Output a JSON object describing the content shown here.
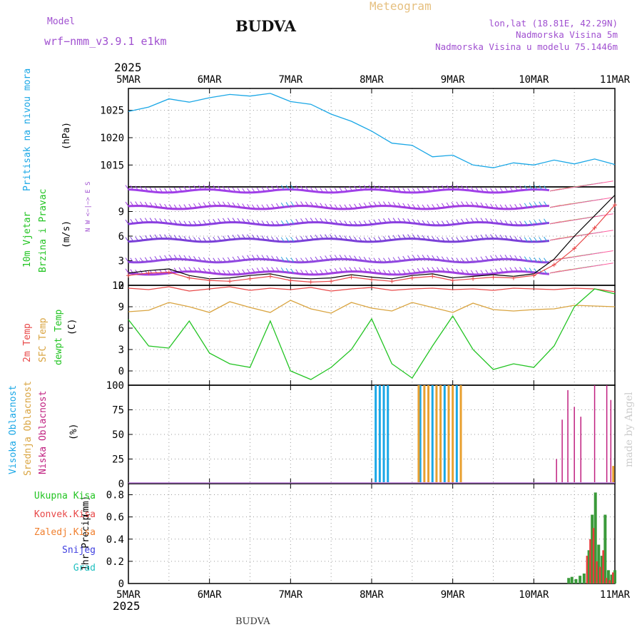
{
  "header": {
    "model_label": "Model",
    "model_name": "wrf−nmm_v3.9.1  e1km",
    "title": "BUDVA",
    "meteogram_label": "Meteogram",
    "coords": "lon,lat (18.81E, 42.29N)",
    "elevation": "Nadmorska Visina 5m",
    "model_elevation": "Nadmorska Visina u modelu 75.1446m",
    "year": "2025",
    "footer_title": "BUDVA",
    "credit": "made by Angel"
  },
  "colors": {
    "pressure": "#1aa7e6",
    "temp2m": "#e84848",
    "sfc": "#d9a440",
    "dewpt": "#22c422",
    "precip_total": "#3a9a3a",
    "precip_conv": "#e83c3c",
    "high_cloud": "#1aa7e6",
    "mid_cloud": "#e8a030",
    "low_cloud": "#c02080",
    "purple": "#a050d0"
  },
  "chart_data": [
    {
      "type": "line",
      "name": "pressure",
      "ylabel": "Pritisak na nivou mora",
      "unit": "(hPa)",
      "x_ticks": [
        "5MAR",
        "6MAR",
        "7MAR",
        "8MAR",
        "9MAR",
        "10MAR",
        "11MAR"
      ],
      "ylim": [
        1011,
        1029
      ],
      "y_ticks": [
        1015,
        1020,
        1025
      ],
      "grid": true,
      "x": [
        0,
        0.25,
        0.5,
        0.75,
        1,
        1.25,
        1.5,
        1.75,
        2,
        2.25,
        2.5,
        2.75,
        3,
        3.25,
        3.5,
        3.75,
        4,
        4.25,
        4.5,
        4.75,
        5,
        5.25,
        5.5,
        5.75,
        6
      ],
      "values": [
        1024.8,
        1025.6,
        1027.1,
        1026.5,
        1027.3,
        1027.9,
        1027.6,
        1028.1,
        1026.6,
        1026.1,
        1024.3,
        1023.0,
        1021.2,
        1019.0,
        1018.6,
        1016.5,
        1016.8,
        1015.0,
        1014.5,
        1015.4,
        1015.0,
        1015.9,
        1015.2,
        1016.1,
        1015.1
      ]
    },
    {
      "type": "wind",
      "ylabel": "10m Vjetar",
      "ylabel2": "Brzina i Pravac",
      "unit": "(m/s)",
      "compass": "N  W <−|−> E  S",
      "ylim": [
        0,
        12
      ],
      "y_ticks": [
        0,
        3,
        6,
        9
      ],
      "speed_levels": [
        1.5,
        3,
        5.5,
        7.5,
        9.5,
        11.5
      ],
      "x": [
        0,
        0.25,
        0.5,
        0.75,
        1,
        1.25,
        1.5,
        1.75,
        2,
        2.25,
        2.5,
        2.75,
        3,
        3.25,
        3.5,
        3.75,
        4,
        4.25,
        4.5,
        4.75,
        5,
        5.25,
        5.5,
        5.75,
        6
      ],
      "speed": [
        1.2,
        1.5,
        1.6,
        0.9,
        0.6,
        0.5,
        0.8,
        1.1,
        0.6,
        0.4,
        0.5,
        1.0,
        0.7,
        0.5,
        0.9,
        1.1,
        0.6,
        0.8,
        1.0,
        0.9,
        1.2,
        2.5,
        4.5,
        7.0,
        9.8
      ],
      "gust": [
        1.5,
        1.8,
        2.0,
        1.2,
        0.8,
        0.9,
        1.2,
        1.4,
        0.9,
        0.8,
        0.9,
        1.3,
        1.0,
        0.8,
        1.2,
        1.4,
        0.9,
        1.1,
        1.3,
        1.1,
        1.4,
        3.2,
        6.0,
        8.5,
        11.0
      ]
    },
    {
      "type": "line",
      "name": "temperature",
      "ylabel": "2m Temp",
      "ylabel2": "SFC Temp",
      "ylabel3": "dewpt Temp",
      "unit": "(C)",
      "ylim": [
        -2,
        12
      ],
      "y_ticks": [
        0,
        3,
        6,
        9,
        12
      ],
      "grid": true,
      "x": [
        0,
        0.25,
        0.5,
        0.75,
        1,
        1.25,
        1.5,
        1.75,
        2,
        2.25,
        2.5,
        2.75,
        3,
        3.25,
        3.5,
        3.75,
        4,
        4.25,
        4.5,
        4.75,
        5,
        5.25,
        5.5,
        5.75,
        6
      ],
      "series": [
        {
          "name": "2m Temp",
          "values": [
            11.6,
            11.4,
            11.8,
            11.2,
            11.5,
            11.8,
            11.3,
            11.6,
            11.4,
            11.7,
            11.2,
            11.5,
            11.7,
            11.3,
            11.5,
            11.6,
            11.4,
            11.5,
            11.3,
            11.6,
            11.5,
            11.4,
            11.6,
            11.5,
            11.1
          ]
        },
        {
          "name": "SFC Temp",
          "values": [
            8.3,
            8.5,
            9.6,
            9.0,
            8.2,
            9.7,
            8.9,
            8.2,
            9.9,
            8.7,
            8.1,
            9.6,
            8.8,
            8.4,
            9.6,
            8.9,
            8.2,
            9.5,
            8.6,
            8.4,
            8.6,
            8.7,
            9.2,
            9.1,
            9.0
          ]
        },
        {
          "name": "dewpt Temp",
          "values": [
            7.2,
            3.5,
            3.2,
            7.0,
            2.5,
            1.0,
            0.5,
            7.0,
            0.0,
            -1.2,
            0.5,
            3.0,
            7.3,
            1.0,
            -1.0,
            3.5,
            7.7,
            3.0,
            0.2,
            1.0,
            0.5,
            3.5,
            9.0,
            11.5,
            10.8
          ]
        }
      ]
    },
    {
      "type": "bar",
      "name": "clouds",
      "ylabel": "Visoka Oblacnost",
      "ylabel2": "Srednja Oblacnost",
      "ylabel3": "Niska Oblacnost",
      "unit": "(%)",
      "ylim": [
        0,
        100
      ],
      "y_ticks": [
        0,
        25,
        50,
        75,
        100
      ],
      "grid": true,
      "series": [
        {
          "name": "Visoka Oblacnost",
          "x": [
            3.05,
            3.1,
            3.15,
            3.2,
            3.6,
            3.75,
            3.9,
            4.05
          ],
          "values": [
            100,
            100,
            100,
            100,
            100,
            100,
            100,
            100
          ]
        },
        {
          "name": "Srednja Oblacnost",
          "x": [
            3.58,
            3.65,
            3.7,
            3.8,
            3.85,
            3.95,
            4.0,
            4.1,
            5.98
          ],
          "values": [
            100,
            100,
            100,
            100,
            100,
            100,
            100,
            100,
            18
          ]
        },
        {
          "name": "Niska Oblacnost",
          "x": [
            5.28,
            5.35,
            5.42,
            5.5,
            5.58,
            5.75,
            5.9,
            5.95
          ],
          "values": [
            25,
            65,
            95,
            78,
            68,
            100,
            100,
            85
          ]
        }
      ]
    },
    {
      "type": "bar",
      "name": "precip",
      "ylabel": "1hr Precip",
      "unit": "(mm)",
      "legend": [
        "Ukupna Kisa",
        "Konvek.Kisa",
        "Zaledj.Kisa",
        "Snijeg",
        "Grad"
      ],
      "ylim": [
        0,
        0.9
      ],
      "y_ticks": [
        0,
        0.2,
        0.4,
        0.6,
        0.8
      ],
      "x_ticks": [
        "5MAR",
        "6MAR",
        "7MAR",
        "8MAR",
        "9MAR",
        "10MAR",
        "11MAR"
      ],
      "grid": true,
      "x": [
        5.43,
        5.47,
        5.52,
        5.57,
        5.62,
        5.68,
        5.72,
        5.76,
        5.8,
        5.84,
        5.88,
        5.92,
        5.96,
        6.0
      ],
      "values": [
        0.05,
        0.06,
        0.04,
        0.07,
        0.09,
        0.3,
        0.62,
        0.82,
        0.35,
        0.25,
        0.62,
        0.12,
        0.08,
        0.12
      ],
      "convective": [
        0.0,
        0.0,
        0.0,
        0.0,
        0.0,
        0.25,
        0.4,
        0.5,
        0.2,
        0.15,
        0.3,
        0.05,
        0.03,
        0.1
      ]
    }
  ]
}
